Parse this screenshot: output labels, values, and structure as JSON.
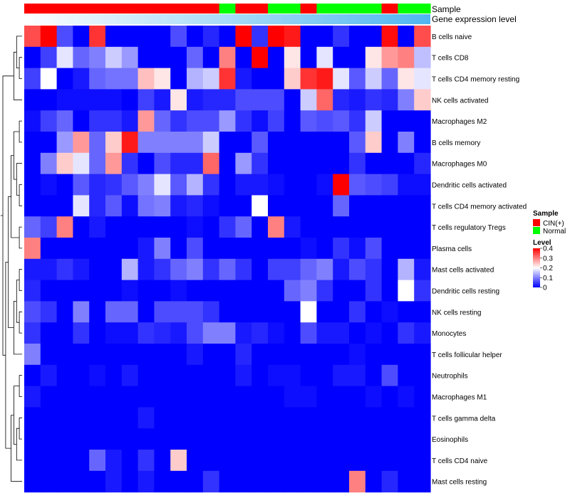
{
  "chart_data": {
    "type": "heatmap",
    "title": "",
    "annotation_tracks": [
      "Sample",
      "Gene expression level"
    ],
    "rows": [
      "B cells naive",
      "T cells CD8",
      "T cells CD4 memory resting",
      "NK cells activated",
      "Macrophages M2",
      "B cells memory",
      "Macrophages M0",
      "Dendritic cells activated",
      "T cells CD4 memory activated",
      "T cells regulatory  Tregs",
      "Plasma cells",
      "Mast cells activated",
      "Dendritic cells resting",
      "NK cells resting",
      "Monocytes",
      "T cells follicular helper",
      "Neutrophils",
      "Macrophages M1",
      "T cells gamma delta",
      "Eosinophils",
      "T cells CD4 naive",
      "Mast cells resting"
    ],
    "sample_groups": [
      "CIN(+)",
      "CIN(+)",
      "CIN(+)",
      "CIN(+)",
      "CIN(+)",
      "CIN(+)",
      "CIN(+)",
      "CIN(+)",
      "CIN(+)",
      "CIN(+)",
      "CIN(+)",
      "CIN(+)",
      "Normal",
      "CIN(+)",
      "CIN(+)",
      "Normal",
      "Normal",
      "CIN(+)",
      "Normal",
      "Normal",
      "Normal",
      "Normal",
      "CIN(+)",
      "Normal",
      "Normal"
    ],
    "values": [
      [
        0.34,
        0.4,
        0.06,
        0.0,
        0.36,
        0.0,
        0.0,
        0.0,
        0.0,
        0.06,
        0.0,
        0.03,
        0.0,
        0.4,
        0.04,
        0.4,
        0.38,
        0.0,
        0.0,
        0.04,
        0.0,
        0.0,
        0.39,
        0.0,
        0.34
      ],
      [
        0.0,
        0.05,
        0.18,
        0.08,
        0.1,
        0.16,
        0.12,
        0.0,
        0.0,
        0.0,
        0.08,
        0.0,
        0.3,
        0.0,
        0.4,
        0.0,
        0.22,
        0.0,
        0.18,
        0.0,
        0.0,
        0.22,
        0.28,
        0.3,
        0.15
      ],
      [
        0.05,
        0.2,
        0.0,
        0.02,
        0.08,
        0.09,
        0.09,
        0.25,
        0.22,
        0.0,
        0.14,
        0.16,
        0.36,
        0.02,
        0.0,
        0.0,
        0.24,
        0.36,
        0.38,
        0.18,
        0.07,
        0.16,
        0.08,
        0.22,
        0.18
      ],
      [
        0.0,
        0.0,
        0.01,
        0.01,
        0.01,
        0.01,
        0.0,
        0.05,
        0.02,
        0.22,
        0.02,
        0.03,
        0.03,
        0.06,
        0.06,
        0.06,
        0.0,
        0.16,
        0.32,
        0.03,
        0.02,
        0.04,
        0.03,
        0.1,
        0.24
      ],
      [
        0.01,
        0.05,
        0.08,
        0.0,
        0.04,
        0.04,
        0.02,
        0.28,
        0.08,
        0.04,
        0.06,
        0.06,
        0.12,
        0.04,
        0.01,
        0.05,
        0.0,
        0.07,
        0.06,
        0.07,
        0.04,
        0.16,
        0.0,
        0.0,
        0.0
      ],
      [
        0.0,
        0.0,
        0.12,
        0.28,
        0.08,
        0.24,
        0.38,
        0.1,
        0.1,
        0.1,
        0.1,
        0.16,
        0.0,
        0.0,
        0.07,
        0.0,
        0.0,
        0.0,
        0.0,
        0.0,
        0.07,
        0.24,
        0.0,
        0.1,
        0.0
      ],
      [
        0.0,
        0.1,
        0.24,
        0.18,
        0.08,
        0.28,
        0.04,
        0.0,
        0.06,
        0.03,
        0.03,
        0.32,
        0.0,
        0.12,
        0.04,
        0.0,
        0.0,
        0.0,
        0.0,
        0.0,
        0.04,
        0.0,
        0.0,
        0.0,
        0.03
      ],
      [
        0.0,
        0.01,
        0.0,
        0.07,
        0.03,
        0.04,
        0.07,
        0.1,
        0.18,
        0.07,
        0.14,
        0.04,
        0.0,
        0.02,
        0.02,
        0.01,
        0.0,
        0.0,
        0.01,
        0.4,
        0.07,
        0.06,
        0.05,
        0.01,
        0.01
      ],
      [
        0.0,
        0.0,
        0.0,
        0.18,
        0.03,
        0.07,
        0.01,
        0.09,
        0.1,
        0.02,
        0.03,
        0.01,
        0.0,
        0.0,
        0.2,
        0.0,
        0.0,
        0.0,
        0.0,
        0.08,
        0.0,
        0.0,
        0.0,
        0.0,
        0.0
      ],
      [
        0.08,
        0.05,
        0.3,
        0.0,
        0.02,
        0.0,
        0.0,
        0.0,
        0.0,
        0.0,
        0.01,
        0.0,
        0.04,
        0.08,
        0.0,
        0.3,
        0.02,
        0.0,
        0.0,
        0.0,
        0.0,
        0.0,
        0.0,
        0.0,
        0.0
      ],
      [
        0.3,
        0.0,
        0.0,
        0.0,
        0.0,
        0.0,
        0.0,
        0.02,
        0.1,
        0.0,
        0.06,
        0.0,
        0.0,
        0.0,
        0.0,
        0.0,
        0.0,
        0.01,
        0.0,
        0.04,
        0.01,
        0.06,
        0.0,
        0.0,
        0.0
      ],
      [
        0.02,
        0.02,
        0.04,
        0.02,
        0.0,
        0.0,
        0.14,
        0.02,
        0.04,
        0.08,
        0.1,
        0.04,
        0.08,
        0.04,
        0.0,
        0.05,
        0.05,
        0.08,
        0.1,
        0.02,
        0.06,
        0.04,
        0.0,
        0.14,
        0.02
      ],
      [
        0.03,
        0.0,
        0.0,
        0.0,
        0.0,
        0.0,
        0.01,
        0.0,
        0.0,
        0.01,
        0.0,
        0.0,
        0.0,
        0.0,
        0.0,
        0.0,
        0.08,
        0.1,
        0.04,
        0.0,
        0.0,
        0.04,
        0.0,
        0.2,
        0.04
      ],
      [
        0.06,
        0.04,
        0.0,
        0.1,
        0.0,
        0.08,
        0.08,
        0.0,
        0.06,
        0.06,
        0.06,
        0.04,
        0.0,
        0.0,
        0.0,
        0.0,
        0.0,
        0.2,
        0.0,
        0.0,
        0.04,
        0.0,
        0.01,
        0.0,
        0.0
      ],
      [
        0.04,
        0.0,
        0.0,
        0.04,
        0.0,
        0.01,
        0.01,
        0.04,
        0.03,
        0.02,
        0.06,
        0.1,
        0.1,
        0.02,
        0.03,
        0.01,
        0.0,
        0.06,
        0.02,
        0.02,
        0.0,
        0.01,
        0.0,
        0.04,
        0.02
      ],
      [
        0.1,
        0.0,
        0.0,
        0.0,
        0.0,
        0.0,
        0.0,
        0.0,
        0.0,
        0.0,
        0.02,
        0.0,
        0.0,
        0.03,
        0.0,
        0.0,
        0.0,
        0.0,
        0.0,
        0.0,
        0.01,
        0.0,
        0.0,
        0.0,
        0.0
      ],
      [
        0.0,
        0.02,
        0.0,
        0.0,
        0.01,
        0.0,
        0.02,
        0.0,
        0.0,
        0.0,
        0.0,
        0.0,
        0.0,
        0.02,
        0.0,
        0.01,
        0.01,
        0.0,
        0.0,
        0.02,
        0.02,
        0.0,
        0.06,
        0.0,
        0.0
      ],
      [
        0.02,
        0.0,
        0.0,
        0.0,
        0.0,
        0.0,
        0.0,
        0.0,
        0.0,
        0.0,
        0.0,
        0.0,
        0.0,
        0.0,
        0.0,
        0.0,
        0.01,
        0.01,
        0.0,
        0.0,
        0.0,
        0.01,
        0.0,
        0.01,
        0.0
      ],
      [
        0.0,
        0.0,
        0.0,
        0.0,
        0.0,
        0.0,
        0.0,
        0.02,
        0.0,
        0.0,
        0.0,
        0.0,
        0.0,
        0.0,
        0.0,
        0.0,
        0.0,
        0.0,
        0.0,
        0.0,
        0.0,
        0.0,
        0.0,
        0.0,
        0.0
      ],
      [
        0.0,
        0.0,
        0.0,
        0.0,
        0.0,
        0.0,
        0.0,
        0.0,
        0.0,
        0.0,
        0.0,
        0.0,
        0.0,
        0.0,
        0.0,
        0.0,
        0.0,
        0.0,
        0.0,
        0.0,
        0.0,
        0.0,
        0.0,
        0.0,
        0.0
      ],
      [
        0.0,
        0.0,
        0.0,
        0.0,
        0.08,
        0.02,
        0.0,
        0.04,
        0.0,
        0.24,
        0.0,
        0.0,
        0.0,
        0.0,
        0.0,
        0.0,
        0.0,
        0.0,
        0.0,
        0.0,
        0.0,
        0.0,
        0.0,
        0.0,
        0.0
      ],
      [
        0.0,
        0.0,
        0.0,
        0.0,
        0.0,
        0.02,
        0.0,
        0.02,
        0.0,
        0.0,
        0.0,
        0.04,
        0.0,
        0.0,
        0.0,
        0.0,
        0.0,
        0.0,
        0.0,
        0.0,
        0.3,
        0.0,
        0.03,
        0.0,
        0.0
      ]
    ],
    "color_scale": {
      "min": 0,
      "max": 0.4,
      "low": "#0000ff",
      "mid": "#ffffff",
      "mid_value": 0.2,
      "high": "#ff0000"
    },
    "legend": {
      "sample_title": "Sample",
      "groups": [
        {
          "name": "CIN(+)",
          "color": "#ff0000"
        },
        {
          "name": "Normal",
          "color": "#00ff00"
        }
      ],
      "level_title": "Level",
      "level_ticks": [
        "0.4",
        "0.3",
        "0.2",
        "0.1",
        "0"
      ],
      "level_tick_values": [
        0.4,
        0.3,
        0.2,
        0.1,
        0
      ]
    },
    "expression_track_colors": [
      "#ffffff",
      "#4fb6f0"
    ]
  }
}
